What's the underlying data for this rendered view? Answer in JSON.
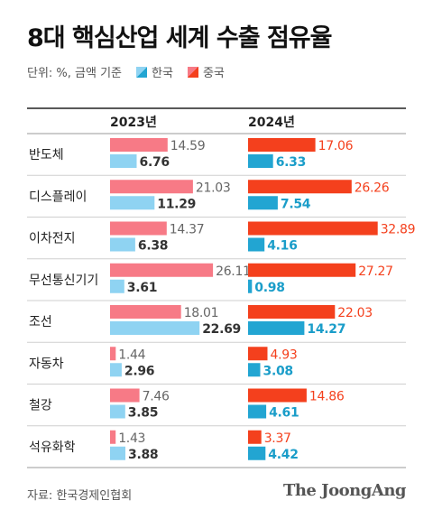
{
  "title": "8대 핵심산업 세계 수출 점유율",
  "subtitle": "단위: %, 금액 기준",
  "legend": [
    {
      "label": "한국",
      "color": "#22a5d2"
    },
    {
      "label": "중국",
      "color": "#f4401d"
    }
  ],
  "source": "자료: 한국경제인협회",
  "brand": "The JoongAng",
  "chart_data": {
    "type": "bar",
    "orientation": "horizontal",
    "categories": [
      "반도체",
      "디스플레이",
      "이차전지",
      "무선통신기기",
      "조선",
      "자동차",
      "철강",
      "석유화학"
    ],
    "panels": [
      {
        "header": "2023년",
        "series": [
          {
            "name": "중국",
            "color": "#f77a86",
            "values": [
              14.59,
              21.03,
              14.37,
              26.11,
              18.01,
              1.44,
              7.46,
              1.43
            ]
          },
          {
            "name": "한국",
            "color": "#8fd3f2",
            "values": [
              6.76,
              11.29,
              6.38,
              3.61,
              22.69,
              2.96,
              3.85,
              3.88
            ]
          }
        ]
      },
      {
        "header": "2024년",
        "series": [
          {
            "name": "중국",
            "color": "#f4401d",
            "values": [
              17.06,
              26.26,
              32.89,
              27.27,
              22.03,
              4.93,
              14.86,
              3.37
            ]
          },
          {
            "name": "한국",
            "color": "#22a5d2",
            "values": [
              6.33,
              7.54,
              4.16,
              0.98,
              14.27,
              3.08,
              4.61,
              4.42
            ]
          }
        ]
      }
    ],
    "grid": false,
    "legend_position": "top-left"
  }
}
